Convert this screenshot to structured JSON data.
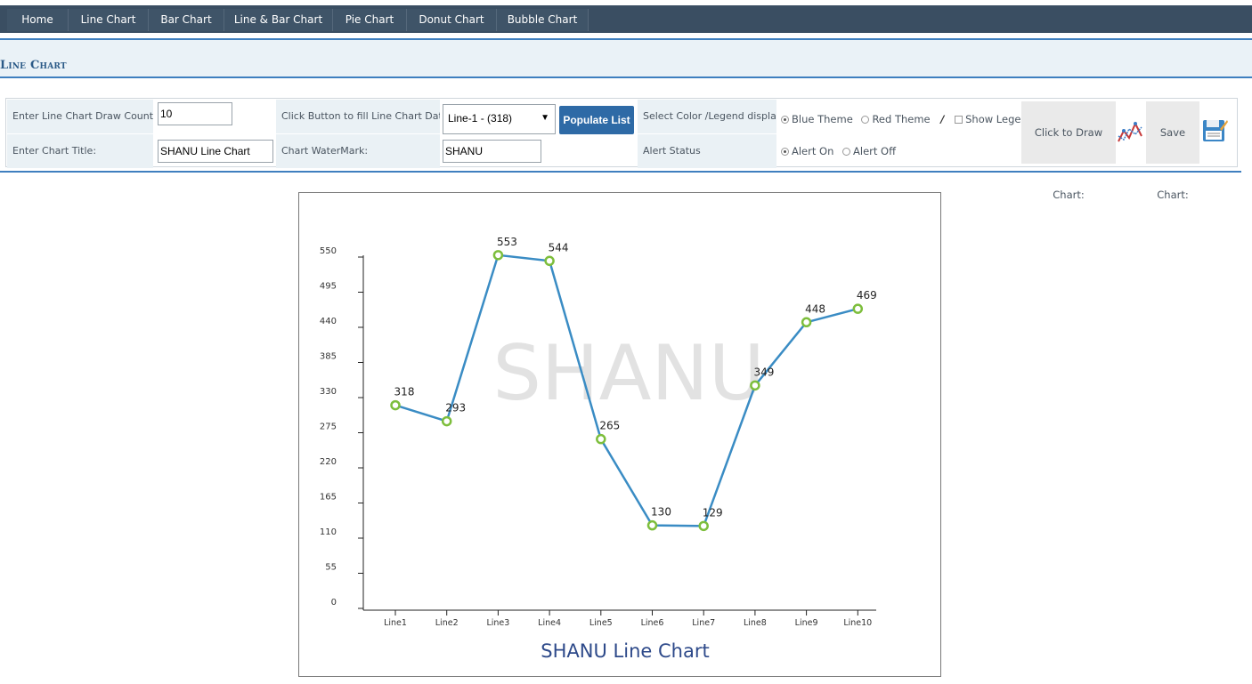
{
  "nav": {
    "items": [
      "Home",
      "Line Chart",
      "Bar Chart",
      "Line & Bar Chart",
      "Pie Chart",
      "Donut Chart",
      "Bubble Chart"
    ]
  },
  "page": {
    "title": "Line Chart"
  },
  "controls": {
    "draw_count_label": "Enter Line Chart Draw Count:",
    "draw_count_value": "10",
    "chart_title_label": "Enter Chart Title:",
    "chart_title_value": "SHANU Line Chart",
    "fill_data_label": "Click Button to fill Line Chart Data:",
    "fill_data_select": "Line-1 - (318)",
    "populate_button": "Populate List",
    "watermark_label": "Chart WaterMark:",
    "watermark_value": "SHANU",
    "theme_label": "Select Color /Legend display",
    "theme_blue": "Blue Theme",
    "theme_red": "Red Theme",
    "theme_separator": "/",
    "show_legend": "Show Legend",
    "alert_label": "Alert Status",
    "alert_on": "Alert On",
    "alert_off": "Alert Off",
    "draw_chart_label": "Click to Draw Chart:",
    "save_chart_label": "Save Chart:"
  },
  "colors": {
    "line": "#3a8cc4",
    "point": "#7dbe3c",
    "title": "#2e4a8a",
    "watermark": "#e2e2e2"
  },
  "chart_data": {
    "type": "line",
    "title": "SHANU Line Chart",
    "watermark": "SHANU",
    "categories": [
      "Line1",
      "Line2",
      "Line3",
      "Line4",
      "Line5",
      "Line6",
      "Line7",
      "Line8",
      "Line9",
      "Line10"
    ],
    "values": [
      318,
      293,
      553,
      544,
      265,
      130,
      129,
      349,
      448,
      469
    ],
    "yticks": [
      0,
      55,
      110,
      165,
      220,
      275,
      330,
      385,
      440,
      495,
      550
    ],
    "ylim": [
      0,
      550
    ],
    "grid": false,
    "legend": false
  }
}
